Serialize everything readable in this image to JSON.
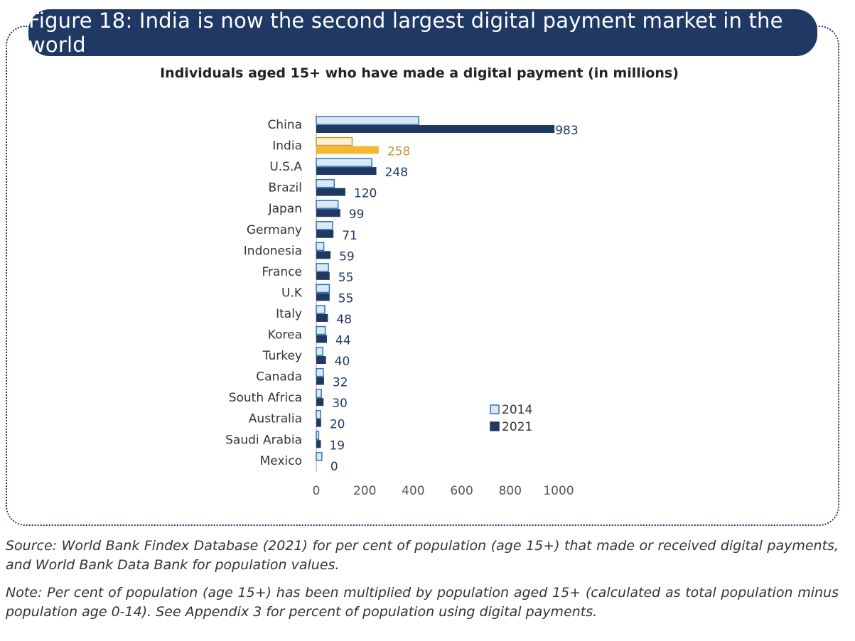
{
  "title": "Figure 18: India is now the second largest digital payment market in the world",
  "chart_data": {
    "type": "bar",
    "orientation": "horizontal",
    "title": "Individuals aged 15+ who have made a digital payment (in millions)",
    "categories": [
      "China",
      "India",
      "U.S.A",
      "Brazil",
      "Japan",
      "Germany",
      "Indonesia",
      "France",
      "U.K",
      "Italy",
      "Korea",
      "Turkey",
      "Canada",
      "South Africa",
      "Australia",
      "Saudi Arabia",
      "Mexico"
    ],
    "series": [
      {
        "name": "2014",
        "values": [
          423,
          148,
          229,
          74,
          90,
          67,
          31,
          50,
          54,
          35,
          37,
          27,
          29,
          21,
          18,
          10,
          23
        ],
        "color": "#dbe8f6",
        "stroke": "#2e75b6"
      },
      {
        "name": "2021",
        "values": [
          983,
          258,
          248,
          120,
          99,
          71,
          59,
          55,
          55,
          48,
          44,
          40,
          32,
          30,
          20,
          19,
          0
        ],
        "color": "#1f3864"
      }
    ],
    "data_labels": [
      "983",
      "258",
      "248",
      "120",
      "99",
      "71",
      "59",
      "55",
      "55",
      "48",
      "44",
      "40",
      "32",
      "30",
      "20",
      "19",
      "0"
    ],
    "highlight": {
      "category": "India",
      "color_2021": "#f5b731",
      "color_2014": "#fdf1d3",
      "stroke_2014": "#c9962a",
      "label_color": "#c9962a"
    },
    "xticks": [
      "0",
      "200",
      "400",
      "600",
      "800",
      "1000"
    ],
    "xlim": [
      0,
      1000
    ],
    "grid": false,
    "legend_position": "bottom-right"
  },
  "source": "Source: World Bank Findex Database (2021) for per cent of population (age 15+) that made or received digital payments, and World Bank Data Bank for population values.",
  "note": "Note: Per cent of population (age 15+) has been multiplied by population aged 15+ (calculated as total population minus population age 0-14). See Appendix 3 for percent of population using digital payments."
}
